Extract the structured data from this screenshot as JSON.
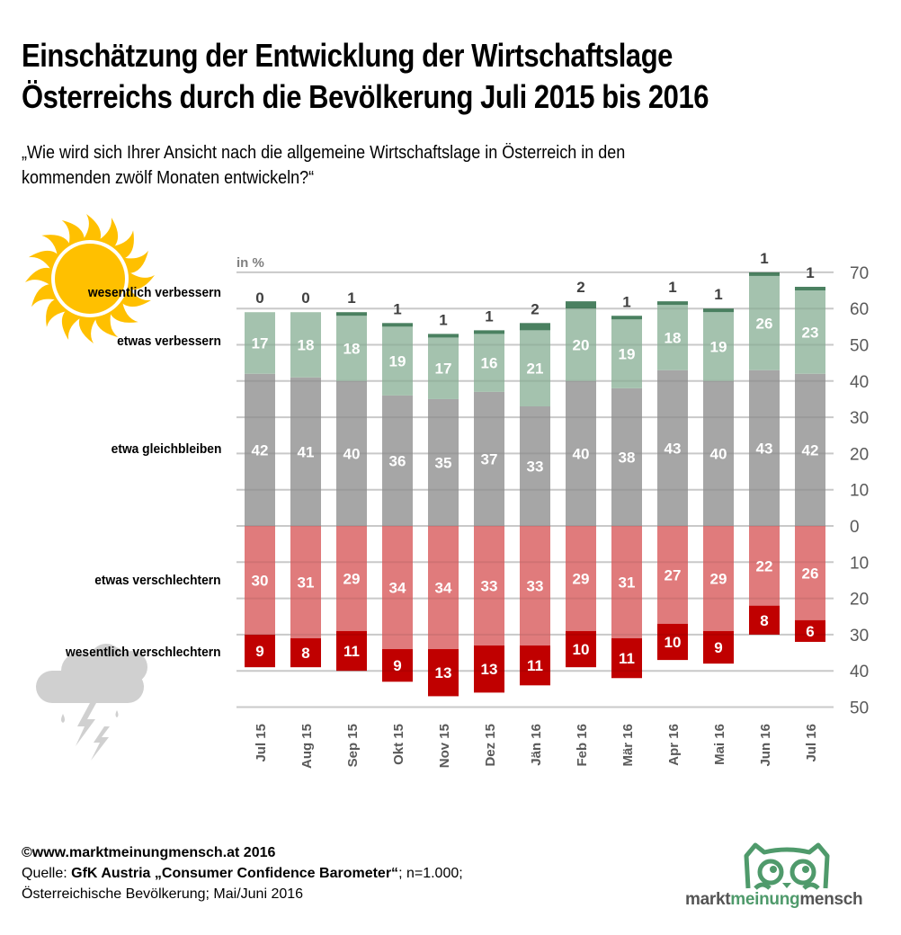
{
  "header": {
    "title_line1": "Einschätzung der Entwicklung der Wirtschaftslage",
    "title_line2": "Österreichs durch die Bevölkerung Juli 2015 bis 2016",
    "subtitle_line1": "„Wie wird sich Ihrer Ansicht nach die allgemeine Wirtschaftslage in Österreich in den",
    "subtitle_line2": "kommenden  zwölf Monaten entwickeln?“"
  },
  "legend": {
    "wesentlich_verbessern": "wesentlich verbessern",
    "etwas_verbessern": "etwas verbessern",
    "etwa_gleichbleiben": "etwa gleichbleiben",
    "etwas_verschlechtern": "etwas verschlechtern",
    "wesentlich_verschlechtern": "wesentlich verschlechtern",
    "icons": {
      "top": "sun-icon",
      "bottom": "storm-cloud-icon"
    }
  },
  "colors": {
    "wesentlich_verbessern": "#4a8060",
    "etwas_verbessern": "#a4c2ae",
    "etwa_gleichbleiben": "#a6a6a6",
    "etwas_verschlechtern": "#e07b7c",
    "wesentlich_verschlechtern": "#c00000",
    "sun": "#ffc000",
    "cloud": "#d0d0d0",
    "logo_green": "#4f9a6b",
    "logo_grey": "#555555"
  },
  "chart_data": {
    "type": "bar",
    "stacked": true,
    "diverging": true,
    "unit_label": "in %",
    "categories": [
      "Jul 15",
      "Aug 15",
      "Sep 15",
      "Okt 15",
      "Nov 15",
      "Dez 15",
      "Jän 16",
      "Feb 16",
      "Mär 16",
      "Apr 16",
      "Mai 16",
      "Jun 16",
      "Jul 16"
    ],
    "series": [
      {
        "name": "etwa gleichbleiben",
        "direction": "up",
        "values": [
          42,
          41,
          40,
          36,
          35,
          37,
          33,
          40,
          38,
          43,
          40,
          43,
          42
        ]
      },
      {
        "name": "etwas verbessern",
        "direction": "up",
        "values": [
          17,
          18,
          18,
          19,
          17,
          16,
          21,
          20,
          19,
          18,
          19,
          26,
          23
        ]
      },
      {
        "name": "wesentlich verbessern",
        "direction": "up",
        "values": [
          0,
          0,
          1,
          1,
          1,
          1,
          2,
          2,
          1,
          1,
          1,
          1,
          1
        ]
      },
      {
        "name": "etwas verschlechtern",
        "direction": "down",
        "values": [
          30,
          31,
          29,
          34,
          34,
          33,
          33,
          29,
          31,
          27,
          29,
          22,
          26
        ]
      },
      {
        "name": "wesentlich verschlechtern",
        "direction": "down",
        "values": [
          9,
          8,
          11,
          9,
          13,
          13,
          11,
          10,
          11,
          10,
          9,
          8,
          6
        ]
      }
    ],
    "yaxis": {
      "position": "right",
      "range": [
        -50,
        70
      ],
      "ticks": [
        70,
        60,
        50,
        40,
        30,
        20,
        10,
        0,
        -10,
        -20,
        -30,
        -40,
        -50
      ],
      "tick_labels": [
        "70",
        "60",
        "50",
        "40",
        "30",
        "20",
        "10",
        "0",
        "10",
        "20",
        "30",
        "40",
        "50"
      ]
    },
    "grid": true,
    "xlabel": "",
    "ylabel": "in %"
  },
  "footer": {
    "copyright": "©www.marktmeinungmensch.at 2016",
    "source_prefix": "Quelle: ",
    "source_bold": "GfK Austria „Consumer Confidence Barometer“",
    "source_suffix": "; n=1.000;",
    "population": "Österreichische Bevölkerung; Mai/Juni 2016"
  },
  "logo": {
    "icon": "owl-icon",
    "part1": "markt",
    "part2": "meinung",
    "part3": "mensch"
  }
}
